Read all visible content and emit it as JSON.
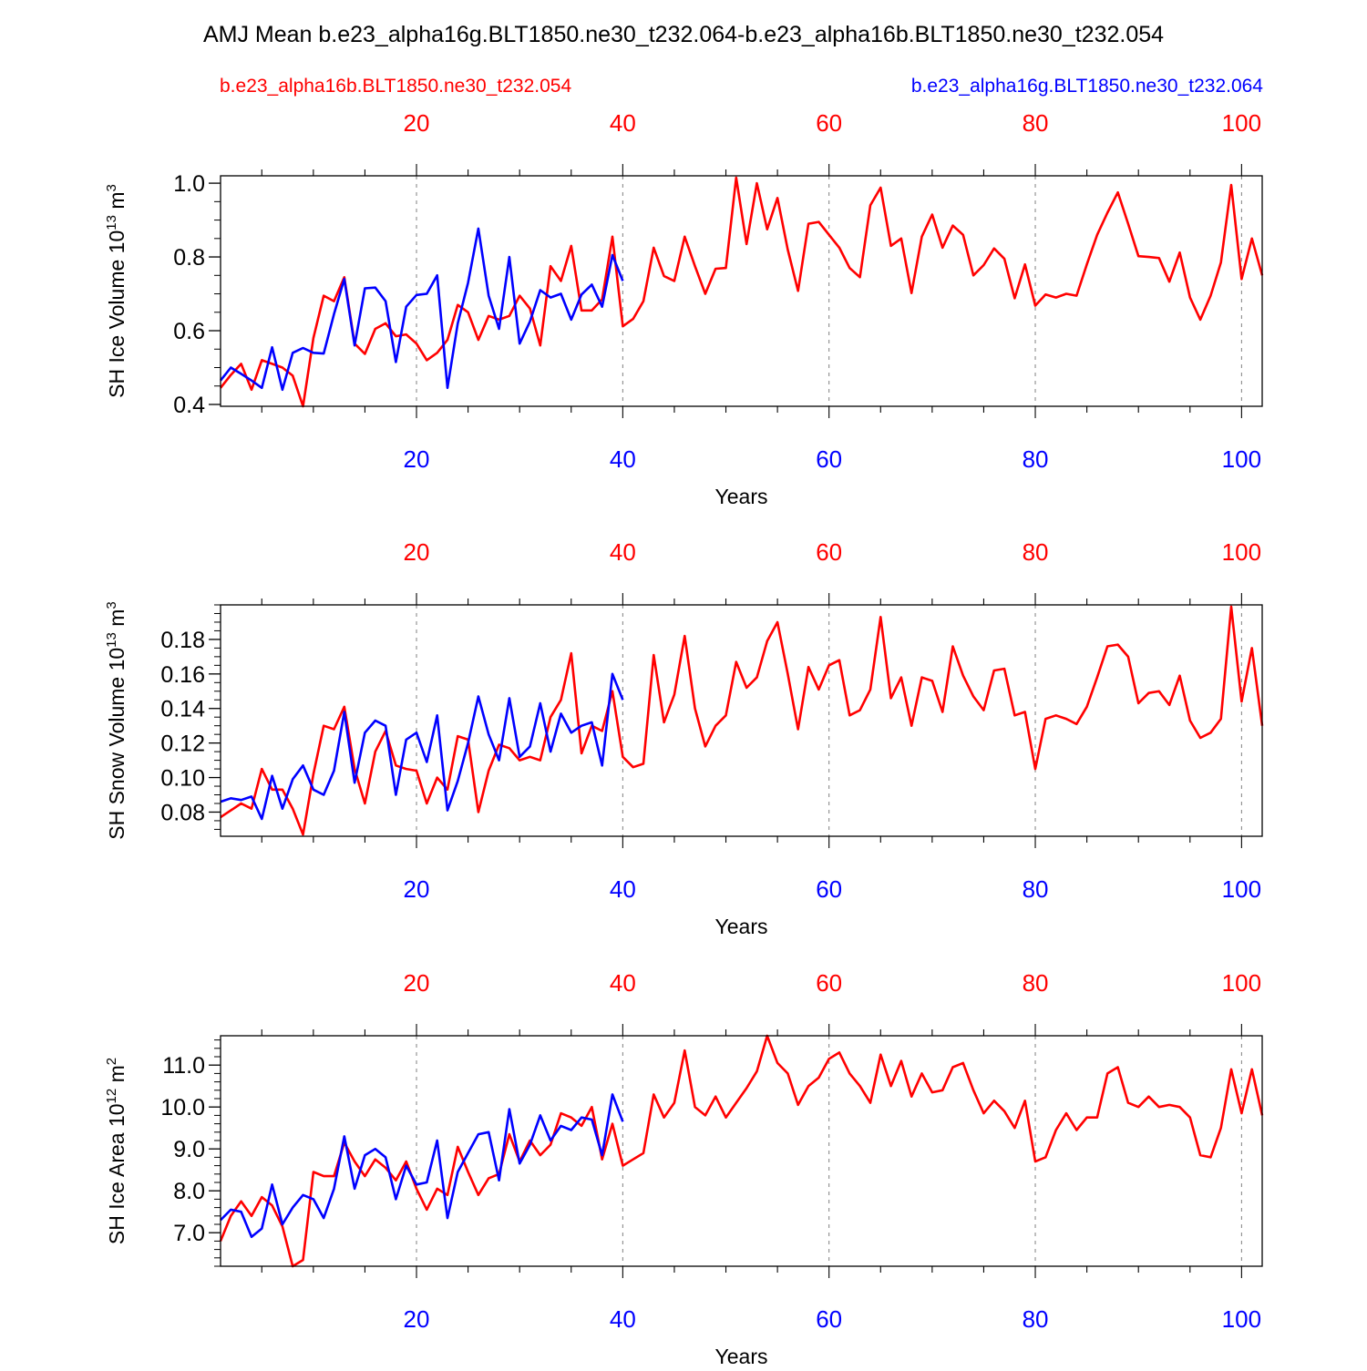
{
  "page": {
    "title": "AMJ Mean b.e23_alpha16g.BLT1850.ne30_t232.064-b.e23_alpha16b.BLT1850.ne30_t232.054",
    "legend_left": "b.e23_alpha16b.BLT1850.ne30_t232.054",
    "legend_right": "b.e23_alpha16g.BLT1850.ne30_t232.064"
  },
  "colors": {
    "case_b": "#ff0000",
    "case_g": "#0000ff",
    "axis": "#000000",
    "grid": "#808080"
  },
  "chart_data": [
    {
      "type": "line",
      "ylabel_base": "SH Ice Volume 10",
      "ylabel_exp": "13",
      "ylabel_unit": " m",
      "ylabel_unit_exp": "3",
      "xlabel": "Years",
      "xlim": [
        1,
        102
      ],
      "ylim": [
        0.395,
        1.02
      ],
      "x_ticks": [
        20,
        40,
        60,
        80,
        100
      ],
      "y_ticks": [
        0.4,
        0.6,
        0.8,
        1.0
      ],
      "y_tick_labels": [
        "0.4",
        "0.6",
        "0.8",
        "1.0"
      ],
      "y_minor_step": 0.05,
      "grid_x": [
        20,
        40,
        60,
        80,
        100
      ],
      "series": [
        {
          "name": "b.e23_alpha16b.BLT1850.ne30_t232.054",
          "color": "#ff0000",
          "x_start": 1,
          "values": [
            0.445,
            0.48,
            0.51,
            0.44,
            0.52,
            0.51,
            0.5,
            0.478,
            0.395,
            0.58,
            0.695,
            0.68,
            0.745,
            0.565,
            0.537,
            0.605,
            0.62,
            0.585,
            0.59,
            0.565,
            0.52,
            0.54,
            0.575,
            0.67,
            0.65,
            0.575,
            0.64,
            0.63,
            0.64,
            0.695,
            0.66,
            0.56,
            0.775,
            0.735,
            0.83,
            0.655,
            0.655,
            0.685,
            0.855,
            0.612,
            0.632,
            0.68,
            0.825,
            0.748,
            0.735,
            0.855,
            0.775,
            0.7,
            0.768,
            0.77,
            1.015,
            0.835,
            1.0,
            0.875,
            0.96,
            0.82,
            0.708,
            0.89,
            0.895,
            0.86,
            0.825,
            0.77,
            0.745,
            0.94,
            0.988,
            0.83,
            0.85,
            0.702,
            0.855,
            0.915,
            0.825,
            0.885,
            0.86,
            0.75,
            0.778,
            0.823,
            0.795,
            0.688,
            0.78,
            0.668,
            0.698,
            0.69,
            0.7,
            0.695,
            0.78,
            0.86,
            0.92,
            0.975,
            0.89,
            0.802,
            0.8,
            0.797,
            0.733,
            0.812,
            0.69,
            0.63,
            0.695,
            0.785,
            0.995,
            0.74,
            0.85,
            0.75
          ]
        },
        {
          "name": "b.e23_alpha16g.BLT1850.ne30_t232.064",
          "color": "#0000ff",
          "x_start": 1,
          "values": [
            0.465,
            0.5,
            0.483,
            0.465,
            0.445,
            0.555,
            0.44,
            0.54,
            0.553,
            0.54,
            0.538,
            0.645,
            0.74,
            0.56,
            0.715,
            0.717,
            0.68,
            0.515,
            0.665,
            0.697,
            0.7,
            0.75,
            0.445,
            0.62,
            0.73,
            0.877,
            0.695,
            0.605,
            0.8,
            0.565,
            0.625,
            0.71,
            0.69,
            0.7,
            0.63,
            0.698,
            0.725,
            0.665,
            0.805,
            0.735
          ]
        }
      ]
    },
    {
      "type": "line",
      "ylabel_base": "SH Snow Volume 10",
      "ylabel_exp": "13",
      "ylabel_unit": " m",
      "ylabel_unit_exp": "3",
      "xlabel": "Years",
      "xlim": [
        1,
        102
      ],
      "ylim": [
        0.066,
        0.2
      ],
      "x_ticks": [
        20,
        40,
        60,
        80,
        100
      ],
      "y_ticks": [
        0.08,
        0.1,
        0.12,
        0.14,
        0.16,
        0.18
      ],
      "y_tick_labels": [
        "0.08",
        "0.10",
        "0.12",
        "0.14",
        "0.16",
        "0.18"
      ],
      "y_minor_step": 0.005,
      "grid_x": [
        20,
        40,
        60,
        80,
        100
      ],
      "series": [
        {
          "name": "b.e23_alpha16b.BLT1850.ne30_t232.054",
          "color": "#ff0000",
          "x_start": 1,
          "values": [
            0.077,
            0.081,
            0.085,
            0.082,
            0.105,
            0.093,
            0.093,
            0.082,
            0.067,
            0.102,
            0.13,
            0.128,
            0.141,
            0.105,
            0.085,
            0.115,
            0.127,
            0.107,
            0.105,
            0.104,
            0.085,
            0.1,
            0.093,
            0.124,
            0.122,
            0.08,
            0.104,
            0.119,
            0.117,
            0.11,
            0.112,
            0.11,
            0.135,
            0.145,
            0.172,
            0.114,
            0.13,
            0.127,
            0.15,
            0.112,
            0.106,
            0.108,
            0.171,
            0.132,
            0.148,
            0.182,
            0.14,
            0.118,
            0.13,
            0.136,
            0.167,
            0.152,
            0.158,
            0.179,
            0.19,
            0.16,
            0.128,
            0.164,
            0.151,
            0.165,
            0.168,
            0.136,
            0.139,
            0.151,
            0.193,
            0.146,
            0.158,
            0.13,
            0.158,
            0.156,
            0.138,
            0.176,
            0.159,
            0.147,
            0.139,
            0.162,
            0.163,
            0.136,
            0.138,
            0.105,
            0.134,
            0.136,
            0.134,
            0.131,
            0.141,
            0.158,
            0.176,
            0.177,
            0.17,
            0.143,
            0.149,
            0.15,
            0.142,
            0.159,
            0.133,
            0.123,
            0.126,
            0.134,
            0.199,
            0.144,
            0.175,
            0.13
          ]
        },
        {
          "name": "b.e23_alpha16g.BLT1850.ne30_t232.064",
          "color": "#0000ff",
          "x_start": 1,
          "values": [
            0.086,
            0.088,
            0.087,
            0.089,
            0.076,
            0.101,
            0.082,
            0.099,
            0.107,
            0.093,
            0.09,
            0.104,
            0.138,
            0.097,
            0.126,
            0.133,
            0.13,
            0.09,
            0.122,
            0.126,
            0.109,
            0.136,
            0.081,
            0.098,
            0.12,
            0.147,
            0.125,
            0.11,
            0.146,
            0.112,
            0.118,
            0.143,
            0.115,
            0.137,
            0.126,
            0.13,
            0.132,
            0.107,
            0.16,
            0.145
          ]
        }
      ]
    },
    {
      "type": "line",
      "ylabel_base": "SH Ice Area 10",
      "ylabel_exp": "12",
      "ylabel_unit": " m",
      "ylabel_unit_exp": "2",
      "xlabel": "Years",
      "xlim": [
        1,
        102
      ],
      "ylim": [
        6.2,
        11.7
      ],
      "x_ticks": [
        20,
        40,
        60,
        80,
        100
      ],
      "y_ticks": [
        7.0,
        8.0,
        9.0,
        10.0,
        11.0
      ],
      "y_tick_labels": [
        "7.0",
        "8.0",
        "9.0",
        "10.0",
        "11.0"
      ],
      "y_minor_step": 0.2,
      "grid_x": [
        20,
        40,
        60,
        80,
        100
      ],
      "series": [
        {
          "name": "b.e23_alpha16b.BLT1850.ne30_t232.054",
          "color": "#ff0000",
          "x_start": 1,
          "values": [
            6.8,
            7.4,
            7.75,
            7.4,
            7.85,
            7.65,
            7.15,
            6.2,
            6.35,
            8.45,
            8.35,
            8.35,
            9.15,
            8.7,
            8.35,
            8.75,
            8.55,
            8.25,
            8.7,
            8.05,
            7.55,
            8.05,
            7.9,
            9.05,
            8.45,
            7.9,
            8.3,
            8.4,
            9.35,
            8.7,
            9.2,
            8.85,
            9.1,
            9.85,
            9.75,
            9.55,
            10.0,
            8.75,
            9.6,
            8.6,
            8.75,
            8.9,
            10.3,
            9.75,
            10.1,
            11.35,
            10.0,
            9.8,
            10.25,
            9.75,
            10.1,
            10.45,
            10.85,
            11.7,
            11.05,
            10.8,
            10.05,
            10.5,
            10.7,
            11.15,
            11.3,
            10.8,
            10.5,
            10.1,
            11.25,
            10.5,
            11.1,
            10.25,
            10.8,
            10.35,
            10.4,
            10.95,
            11.05,
            10.4,
            9.85,
            10.15,
            9.9,
            9.5,
            10.15,
            8.7,
            8.8,
            9.45,
            9.85,
            9.45,
            9.75,
            9.75,
            10.8,
            10.95,
            10.1,
            10.0,
            10.25,
            10.0,
            10.05,
            10.0,
            9.75,
            8.85,
            8.8,
            9.5,
            10.9,
            9.85,
            10.9,
            9.8
          ]
        },
        {
          "name": "b.e23_alpha16g.BLT1850.ne30_t232.064",
          "color": "#0000ff",
          "x_start": 1,
          "values": [
            7.3,
            7.55,
            7.5,
            6.9,
            7.1,
            8.15,
            7.2,
            7.6,
            7.9,
            7.8,
            7.35,
            8.05,
            9.3,
            8.05,
            8.85,
            9.0,
            8.8,
            7.8,
            8.6,
            8.15,
            8.2,
            9.2,
            7.35,
            8.45,
            8.9,
            9.35,
            9.4,
            8.25,
            9.95,
            8.65,
            9.1,
            9.8,
            9.2,
            9.55,
            9.45,
            9.75,
            9.7,
            8.85,
            10.3,
            9.65
          ]
        }
      ]
    }
  ]
}
